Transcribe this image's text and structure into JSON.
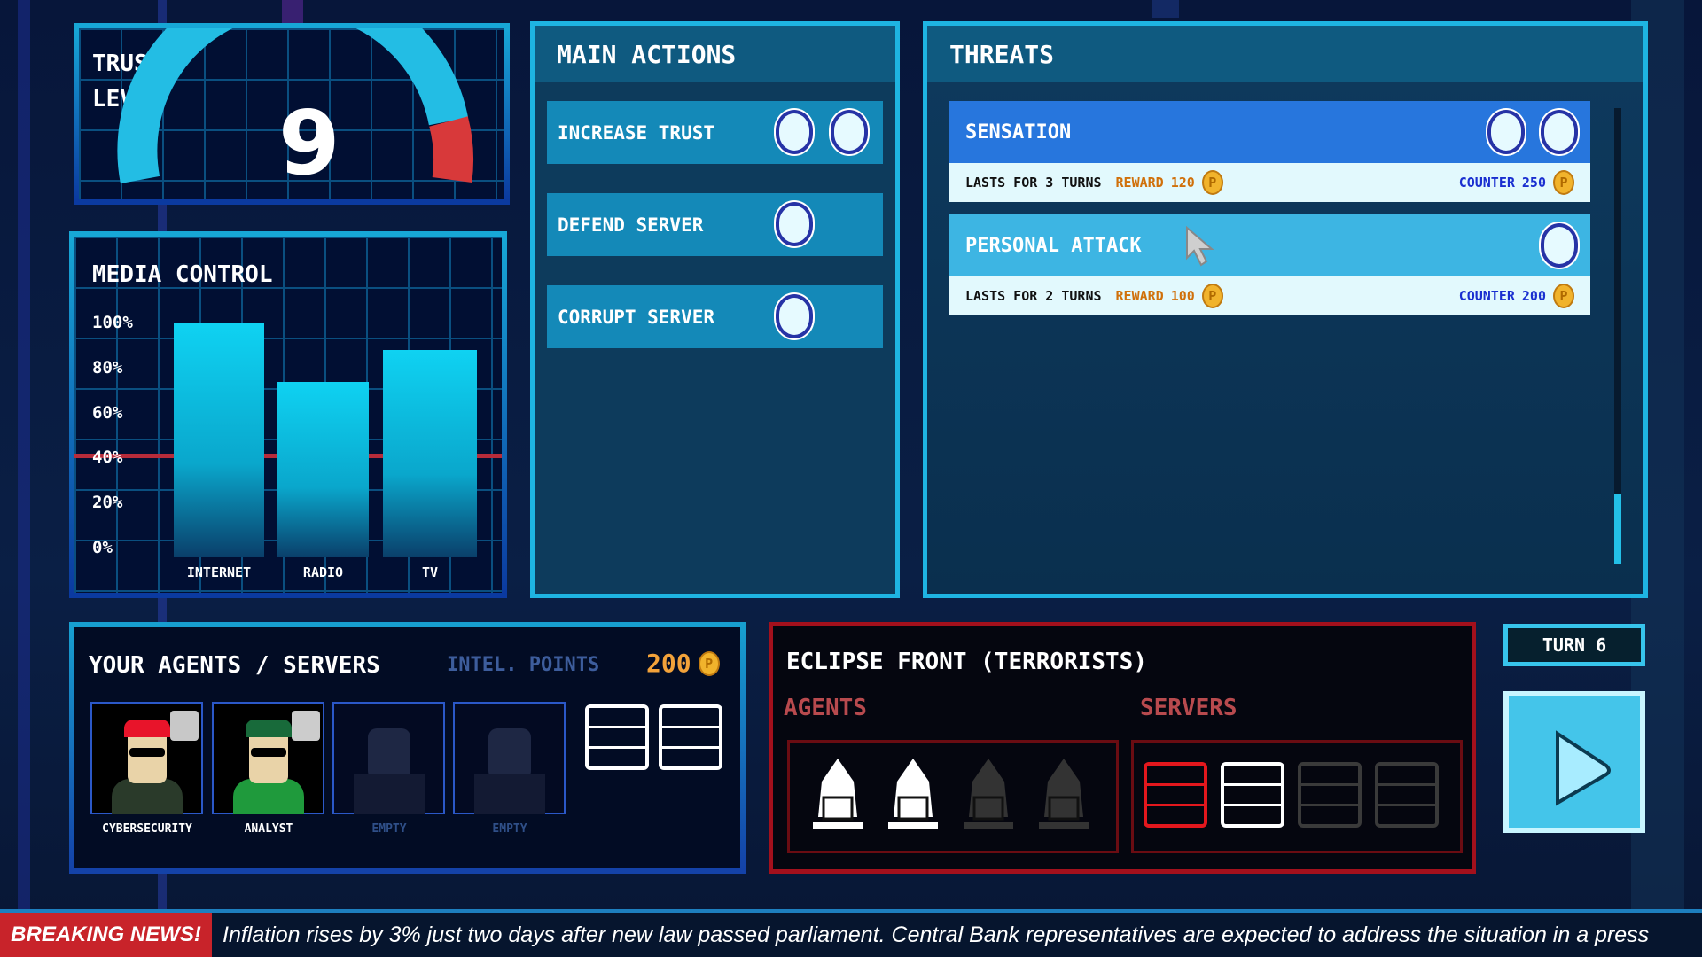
{
  "trust": {
    "label_line1": "TRUST",
    "label_line2": "LEVEL",
    "value": "9",
    "gauge_fraction": 0.85
  },
  "media": {
    "title": "MEDIA CONTROL",
    "y_ticks": [
      "100%",
      "80%",
      "60%",
      "40%",
      "20%",
      "0%"
    ],
    "chart_data": {
      "type": "bar",
      "categories": [
        "INTERNET",
        "RADIO",
        "TV"
      ],
      "values": [
        100,
        74,
        88
      ],
      "ylim": [
        0,
        100
      ],
      "threshold": 40,
      "grid": true
    }
  },
  "actions": {
    "title": "MAIN ACTIONS",
    "items": [
      {
        "label": "INCREASE TRUST",
        "slots": 2
      },
      {
        "label": "DEFEND SERVER",
        "slots": 1
      },
      {
        "label": "CORRUPT SERVER",
        "slots": 1
      }
    ]
  },
  "threats": {
    "title": "THREATS",
    "items": [
      {
        "name": "SENSATION",
        "slots": 2,
        "lasts": "LASTS FOR 3 TURNS",
        "reward_label": "REWARD",
        "reward": "120",
        "counter_label": "COUNTER",
        "counter": "250",
        "color": "#2776dd"
      },
      {
        "name": "PERSONAL ATTACK",
        "slots": 1,
        "lasts": "LASTS FOR 2 TURNS",
        "reward_label": "REWARD",
        "reward": "100",
        "counter_label": "COUNTER",
        "counter": "200",
        "color": "#3db5e3"
      }
    ]
  },
  "agents": {
    "title": "YOUR AGENTS / SERVERS",
    "intel_label": "INTEL. POINTS",
    "intel_value": "200",
    "coin": "P",
    "slots": [
      {
        "label": "CYBERSECURITY"
      },
      {
        "label": "ANALYST"
      },
      {
        "label": "EMPTY"
      },
      {
        "label": "EMPTY"
      }
    ]
  },
  "enemy": {
    "title": "ECLIPSE FRONT (TERRORISTS)",
    "agents_label": "AGENTS",
    "servers_label": "SERVERS",
    "agents_active": 2,
    "agents_total": 4,
    "servers": [
      "corrupted",
      "active",
      "inactive",
      "inactive"
    ]
  },
  "turn": {
    "label": "TURN 6"
  },
  "news": {
    "label": "BREAKING NEWS!",
    "text": "Inflation rises by 3% just two days after new law passed parliament. Central Bank representatives are expected to address the situation in a press"
  },
  "colors": {
    "accent": "#1eb4e2",
    "danger": "#d8393a",
    "gold": "#f1b32c",
    "counter": "#1a2fd0",
    "reward": "#d0700a"
  }
}
